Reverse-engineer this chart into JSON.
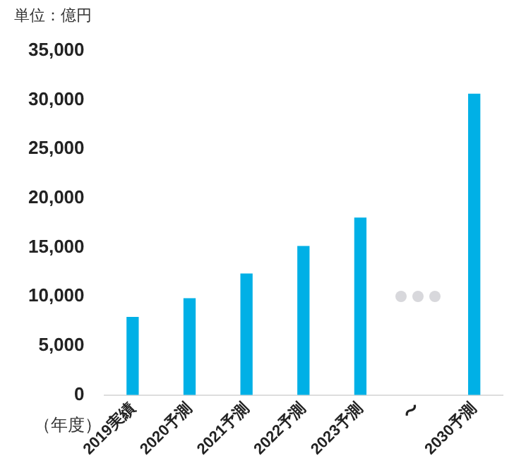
{
  "chart_data": {
    "type": "bar",
    "ylabel": "単位：億円",
    "xlabel": "（年度）",
    "categories": [
      "2019実績",
      "2020予測",
      "2021予測",
      "2022予測",
      "2023予測",
      "〜",
      "2030予測"
    ],
    "values": [
      7900,
      9800,
      12300,
      15100,
      18000,
      null,
      30600
    ],
    "color": "#00b0e6",
    "ylim": [
      0,
      35000
    ],
    "yticks": [
      0,
      {
        "value": 5000,
        "label": "5,000"
      },
      {
        "value": 10000,
        "label": "10,000"
      },
      {
        "value": 15000,
        "label": "15,000"
      },
      {
        "value": 20000,
        "label": "20,000"
      },
      {
        "value": 25000,
        "label": "25,000"
      },
      {
        "value": 30000,
        "label": "30,000"
      },
      {
        "value": 35000,
        "label": "35,000"
      }
    ],
    "grid": false,
    "legend": false
  }
}
